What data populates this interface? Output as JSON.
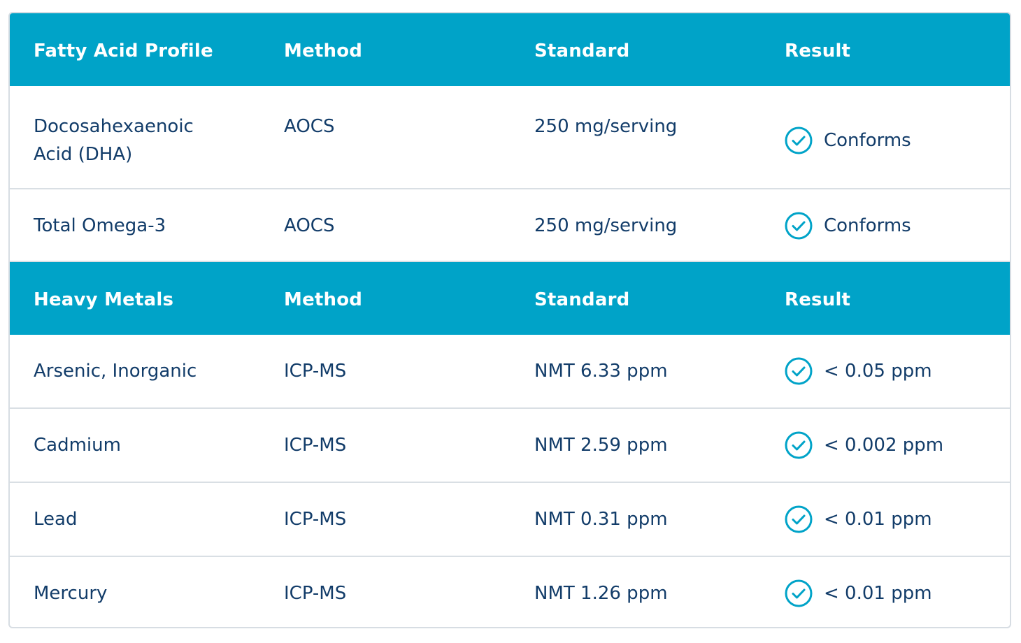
{
  "sections": [
    {
      "headers": [
        "Fatty Acid Profile",
        "Method",
        "Standard",
        "Result"
      ],
      "rows": [
        {
          "name": "Docosahexaenoic Acid (DHA)",
          "method": "AOCS",
          "standard": "250 mg/serving",
          "result": "Conforms"
        },
        {
          "name": "Total Omega-3",
          "method": "AOCS",
          "standard": "250 mg/serving",
          "result": "Conforms"
        }
      ]
    },
    {
      "headers": [
        "Heavy Metals",
        "Method",
        "Standard",
        "Result"
      ],
      "rows": [
        {
          "name": "Arsenic, Inorganic",
          "method": "ICP-MS",
          "standard": "NMT 6.33 ppm",
          "result": "< 0.05 ppm"
        },
        {
          "name": "Cadmium",
          "method": "ICP-MS",
          "standard": "NMT 2.59 ppm",
          "result": "< 0.002 ppm"
        },
        {
          "name": "Lead",
          "method": "ICP-MS",
          "standard": "NMT 0.31 ppm",
          "result": "< 0.01 ppm"
        },
        {
          "name": "Mercury",
          "method": "ICP-MS",
          "standard": "NMT 1.26 ppm",
          "result": "< 0.01 ppm"
        }
      ]
    }
  ],
  "icons": {
    "result_status": "check-circle-icon"
  },
  "colors": {
    "header_bg": "#00a3c8",
    "header_text": "#ffffff",
    "body_text": "#123c69",
    "check": "#00a3c8",
    "divider": "#d9dfe4"
  }
}
